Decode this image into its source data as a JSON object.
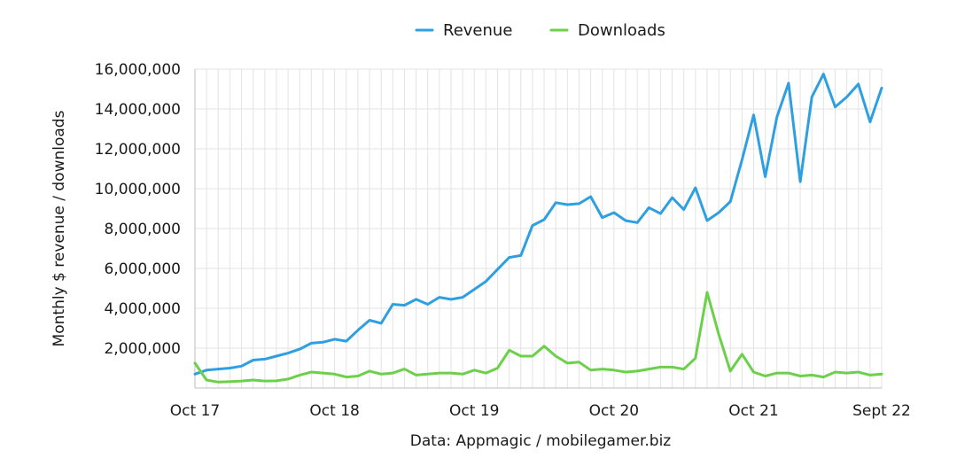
{
  "chart_data": {
    "type": "line",
    "ylabel": "Monthly $ revenue / downloads",
    "source_note": "Data: Appmagic / mobilegamer.biz",
    "ylim": [
      0,
      16000000
    ],
    "y_ticks": [
      2000000,
      4000000,
      6000000,
      8000000,
      10000000,
      12000000,
      14000000,
      16000000
    ],
    "y_tick_labels": [
      "2,000,000",
      "4,000,000",
      "6,000,000",
      "8,000,000",
      "10,000,000",
      "12,000,000",
      "14,000,000",
      "16,000,000"
    ],
    "x_ticks": [
      {
        "index": 0,
        "label": "Oct 17"
      },
      {
        "index": 12,
        "label": "Oct 18"
      },
      {
        "index": 24,
        "label": "Oct 19"
      },
      {
        "index": 36,
        "label": "Oct 20"
      },
      {
        "index": 48,
        "label": "Oct 21"
      },
      {
        "index": 59,
        "label": "Sept 22"
      }
    ],
    "grid": true,
    "legend_position": "top-center",
    "series": [
      {
        "name": "Revenue",
        "color": "#2E9FE0",
        "values": [
          700000,
          900000,
          950000,
          1000000,
          1100000,
          1400000,
          1450000,
          1600000,
          1750000,
          1950000,
          2250000,
          2300000,
          2450000,
          2350000,
          2900000,
          3400000,
          3250000,
          4200000,
          4150000,
          4450000,
          4200000,
          4550000,
          4450000,
          4550000,
          4950000,
          5350000,
          5950000,
          6550000,
          6650000,
          8150000,
          8450000,
          9300000,
          9200000,
          9250000,
          9600000,
          8550000,
          8800000,
          8400000,
          8300000,
          9050000,
          8750000,
          9550000,
          8950000,
          10050000,
          8400000,
          8800000,
          9350000,
          11450000,
          13700000,
          10600000,
          13600000,
          15300000,
          10350000,
          14600000,
          15750000,
          14100000,
          14600000,
          15250000,
          13350000,
          15050000
        ]
      },
      {
        "name": "Downloads",
        "color": "#6CD04A",
        "values": [
          1250000,
          400000,
          300000,
          320000,
          350000,
          400000,
          350000,
          360000,
          450000,
          650000,
          800000,
          750000,
          700000,
          550000,
          600000,
          850000,
          700000,
          750000,
          950000,
          650000,
          700000,
          750000,
          750000,
          700000,
          900000,
          750000,
          1000000,
          1900000,
          1600000,
          1600000,
          2100000,
          1600000,
          1250000,
          1300000,
          900000,
          950000,
          900000,
          800000,
          850000,
          950000,
          1050000,
          1050000,
          950000,
          1500000,
          4800000,
          2700000,
          850000,
          1700000,
          800000,
          600000,
          750000,
          750000,
          600000,
          650000,
          550000,
          800000,
          750000,
          800000,
          650000,
          700000
        ]
      }
    ]
  }
}
